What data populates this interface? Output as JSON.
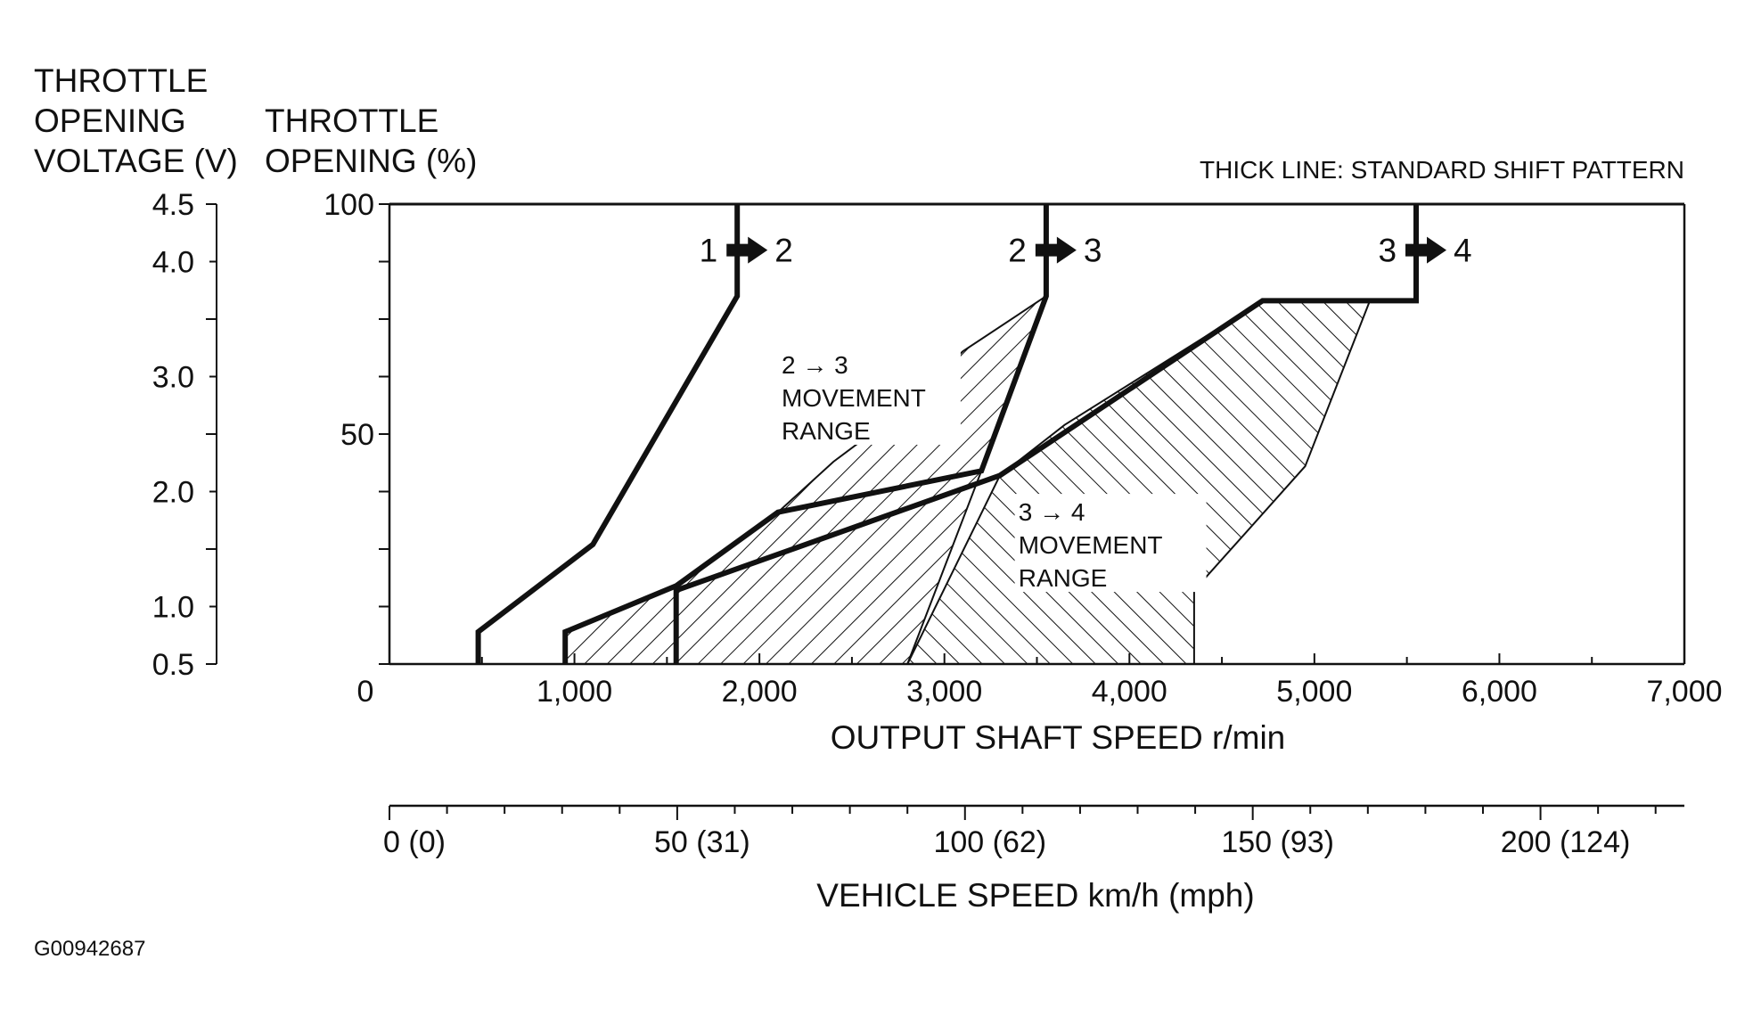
{
  "chart_data": {
    "type": "line",
    "note": "THICK LINE: STANDARD SHIFT PATTERN",
    "figure_code": "G00942687",
    "axes": {
      "voltage": {
        "label_lines": [
          "THROTTLE",
          "OPENING",
          "VOLTAGE (V)"
        ],
        "ticks": [
          {
            "label": "4.5",
            "pct": 100
          },
          {
            "label": "4.0",
            "pct": 87.5
          },
          {
            "label": "3.0",
            "pct": 62.5
          },
          {
            "label": "2.0",
            "pct": 37.5
          },
          {
            "label": "1.0",
            "pct": 12.5
          },
          {
            "label": "0.5",
            "pct": 0
          }
        ]
      },
      "throttle": {
        "label_lines": [
          "THROTTLE",
          "OPENING (%)"
        ],
        "ylim": [
          0,
          100
        ],
        "ticks": [
          {
            "label": "100",
            "value": 100
          },
          {
            "label": "50",
            "value": 50
          }
        ]
      },
      "x": {
        "label": "OUTPUT SHAFT SPEED r/min",
        "xlim": [
          0,
          7000
        ],
        "ticks": [
          {
            "label": "0",
            "value": 0
          },
          {
            "label": "1,000",
            "value": 1000
          },
          {
            "label": "2,000",
            "value": 2000
          },
          {
            "label": "3,000",
            "value": 3000
          },
          {
            "label": "4,000",
            "value": 4000
          },
          {
            "label": "5,000",
            "value": 5000
          },
          {
            "label": "6,000",
            "value": 6000
          },
          {
            "label": "7,000",
            "value": 7000
          }
        ]
      },
      "vehicle_speed": {
        "label": "VEHICLE SPEED km/h (mph)",
        "xlim": [
          0,
          225
        ],
        "ticks": [
          {
            "label": "0 (0)",
            "value": 0
          },
          {
            "label": "50 (31)",
            "value": 50
          },
          {
            "label": "100 (62)",
            "value": 100
          },
          {
            "label": "150 (93)",
            "value": 150
          },
          {
            "label": "200 (124)",
            "value": 200
          }
        ]
      }
    },
    "series": [
      {
        "name": "1→2 shift",
        "label": [
          "1",
          "2"
        ],
        "points": [
          [
            480,
            0
          ],
          [
            480,
            7
          ],
          [
            1100,
            26
          ],
          [
            1880,
            80
          ],
          [
            1880,
            100
          ]
        ]
      },
      {
        "name": "2→3 shift",
        "label": [
          "2",
          "3"
        ],
        "points": [
          [
            950,
            0
          ],
          [
            950,
            7
          ],
          [
            1550,
            17
          ],
          [
            2100,
            33
          ],
          [
            3200,
            42
          ],
          [
            3550,
            80
          ],
          [
            3550,
            100
          ]
        ]
      },
      {
        "name": "3→4 shift",
        "label": [
          "3",
          "4"
        ],
        "points": [
          [
            1550,
            0
          ],
          [
            1550,
            16
          ],
          [
            3300,
            41
          ],
          [
            4720,
            79
          ],
          [
            5550,
            79
          ],
          [
            5550,
            100
          ]
        ]
      }
    ],
    "regions": [
      {
        "name": "2→3 MOVEMENT RANGE",
        "label_lines": [
          "2 → 3",
          "MOVEMENT",
          "RANGE"
        ],
        "points": [
          [
            950,
            7
          ],
          [
            1550,
            17
          ],
          [
            2100,
            33
          ],
          [
            2400,
            44
          ],
          [
            2700,
            53
          ],
          [
            3100,
            68
          ],
          [
            3550,
            80
          ],
          [
            3200,
            42
          ],
          [
            2800,
            0
          ],
          [
            950,
            0
          ]
        ]
      },
      {
        "name": "3→4 MOVEMENT RANGE",
        "label_lines": [
          "3 → 4",
          "MOVEMENT",
          "RANGE"
        ],
        "points": [
          [
            3300,
            41
          ],
          [
            3650,
            52
          ],
          [
            4720,
            79
          ],
          [
            5300,
            79
          ],
          [
            4950,
            43
          ],
          [
            4350,
            16
          ],
          [
            4350,
            0
          ],
          [
            2800,
            0
          ]
        ]
      }
    ]
  }
}
